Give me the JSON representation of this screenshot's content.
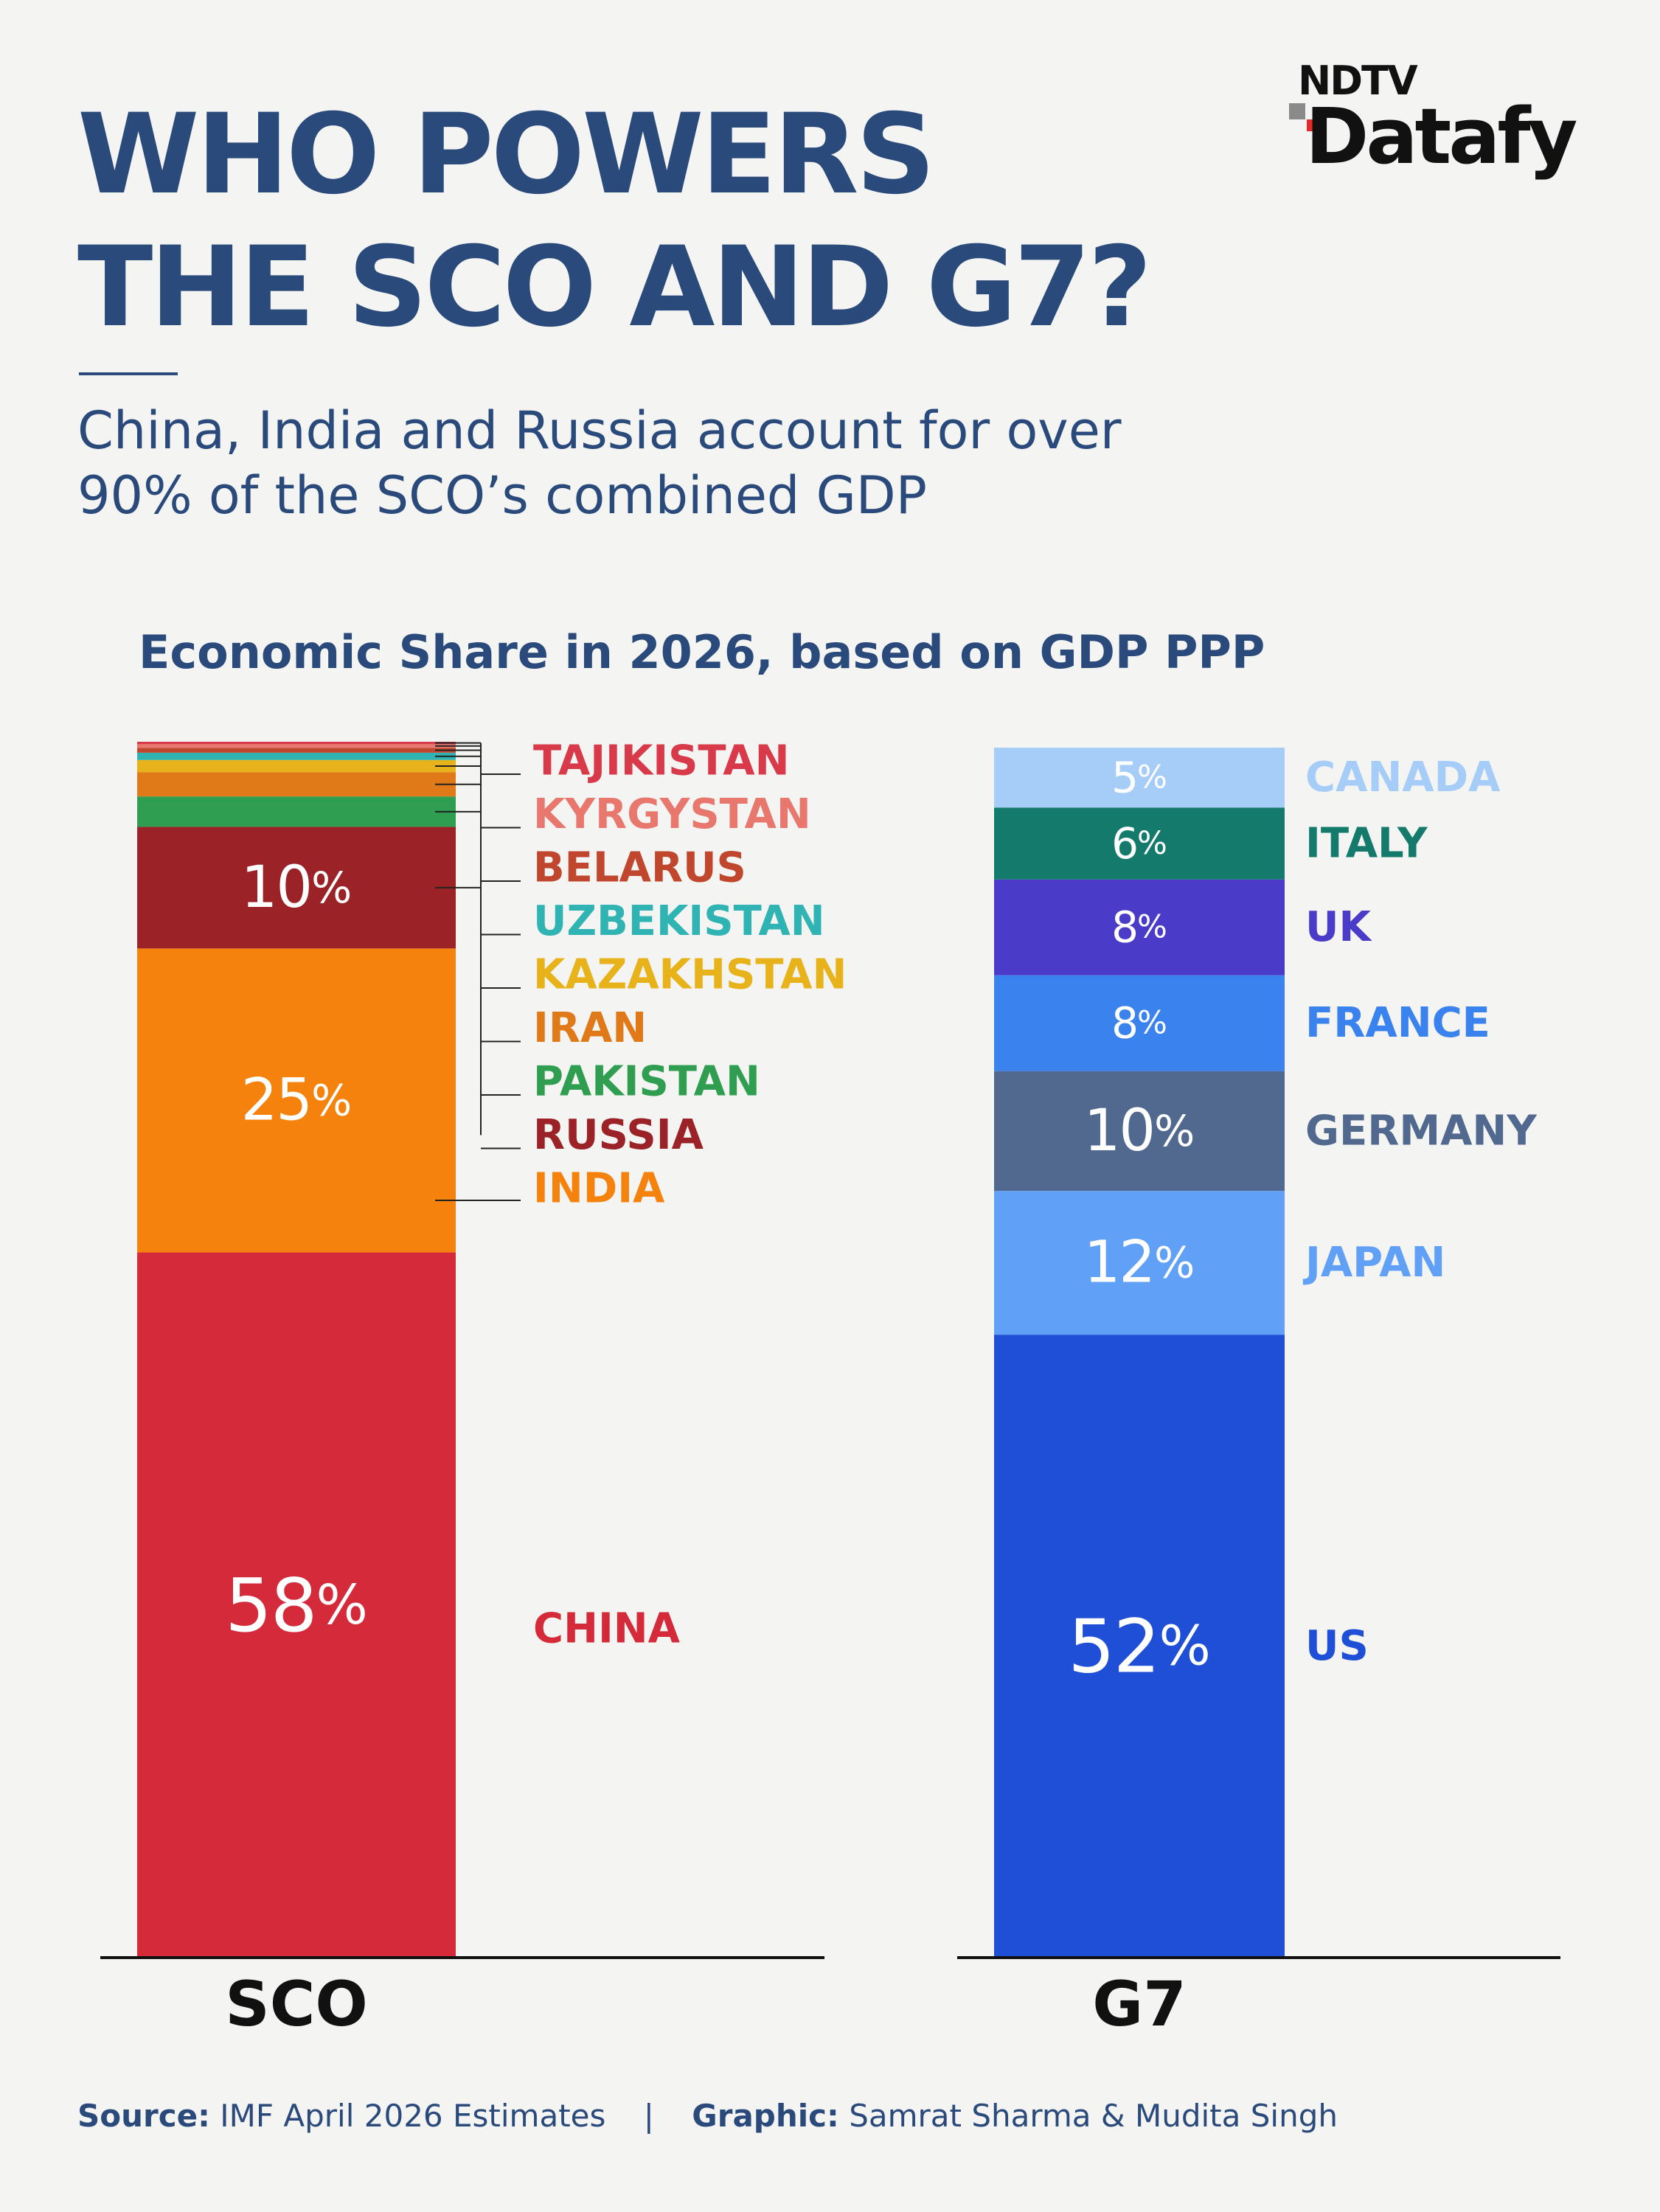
{
  "title_lines": [
    "WHO POWERS",
    "THE SCO AND G7?"
  ],
  "brand": {
    "top": "NDTV",
    "bottom": "Datafy"
  },
  "subtitle_lines": [
    "China, India and Russia account for over",
    "90% of the SCO’s combined GDP"
  ],
  "chart_title": "Economic Share in 2026, based on GDP PPP",
  "footer": {
    "source_label": "Source:",
    "source_text": "IMF April 2026 Estimates",
    "separator": "|",
    "graphic_label": "Graphic:",
    "graphic_text": "Samrat Sharma & Mudita Singh"
  },
  "chart_data": [
    {
      "type": "bar",
      "stacked": true,
      "category": "SCO",
      "unit": "%",
      "segments": [
        {
          "label": "CHINA",
          "value": 58,
          "value_label": "58%",
          "color": "#d52a3a"
        },
        {
          "label": "INDIA",
          "value": 25,
          "value_label": "25%",
          "color": "#f4820c"
        },
        {
          "label": "RUSSIA",
          "value": 10,
          "value_label": "10%",
          "color": "#9b2226"
        },
        {
          "label": "PAKISTAN",
          "value": 2.5,
          "color": "#2f9e50"
        },
        {
          "label": "IRAN",
          "value": 2,
          "color": "#e07a18"
        },
        {
          "label": "KAZAKHSTAN",
          "value": 1,
          "color": "#e8b21a"
        },
        {
          "label": "UZBEKISTAN",
          "value": 0.6,
          "color": "#2fb3b3"
        },
        {
          "label": "BELARUS",
          "value": 0.4,
          "color": "#c0462e"
        },
        {
          "label": "KYRGYSTAN",
          "value": 0.3,
          "color": "#e8786e"
        },
        {
          "label": "TAJIKISTAN",
          "value": 0.2,
          "color": "#d83a4a"
        }
      ]
    },
    {
      "type": "bar",
      "stacked": true,
      "category": "G7",
      "unit": "%",
      "segments": [
        {
          "label": "US",
          "value": 52,
          "value_label": "52%",
          "color": "#1f4fd6"
        },
        {
          "label": "JAPAN",
          "value": 12,
          "value_label": "12%",
          "color": "#60a0f6"
        },
        {
          "label": "GERMANY",
          "value": 10,
          "value_label": "10%",
          "color": "#51698f",
          "label_color": "#51698f"
        },
        {
          "label": "FRANCE",
          "value": 8,
          "value_label": "8%",
          "color": "#3a82ee"
        },
        {
          "label": "UK",
          "value": 8,
          "value_label": "8%",
          "color": "#4a3bc9"
        },
        {
          "label": "ITALY",
          "value": 6,
          "value_label": "6%",
          "color": "#137a6c"
        },
        {
          "label": "CANADA",
          "value": 5,
          "value_label": "5%",
          "color": "#a6cdf7"
        }
      ]
    }
  ]
}
